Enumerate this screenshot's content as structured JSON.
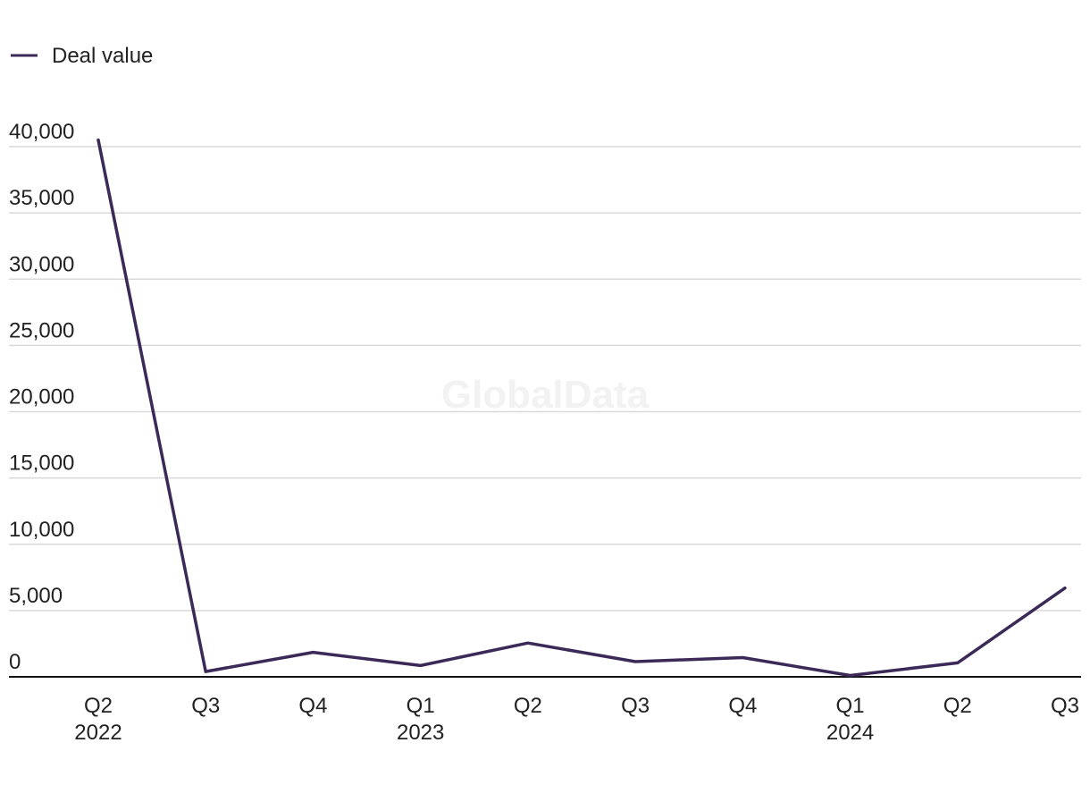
{
  "watermark": "GlobalData",
  "colors": {
    "line": "#3b2a58",
    "grid": "#d9d9d9",
    "axis": "#111111",
    "text": "#222222"
  },
  "chart_data": {
    "type": "line",
    "title": "",
    "xlabel": "",
    "ylabel": "",
    "categories": [
      "Q2 2022",
      "Q3 2022",
      "Q4 2022",
      "Q1 2023",
      "Q2 2023",
      "Q3 2023",
      "Q4 2023",
      "Q1 2024",
      "Q2 2024",
      "Q3 2024"
    ],
    "x_tick_labels": [
      {
        "quarter": "Q2",
        "year": "2022"
      },
      {
        "quarter": "Q3",
        "year": ""
      },
      {
        "quarter": "Q4",
        "year": ""
      },
      {
        "quarter": "Q1",
        "year": "2023"
      },
      {
        "quarter": "Q2",
        "year": ""
      },
      {
        "quarter": "Q3",
        "year": ""
      },
      {
        "quarter": "Q4",
        "year": ""
      },
      {
        "quarter": "Q1",
        "year": "2024"
      },
      {
        "quarter": "Q2",
        "year": ""
      },
      {
        "quarter": "Q3",
        "year": ""
      }
    ],
    "series": [
      {
        "name": "Deal value",
        "values": [
          40500,
          400,
          1850,
          850,
          2550,
          1150,
          1450,
          100,
          1050,
          6700
        ]
      }
    ],
    "y_ticks": [
      0,
      5000,
      10000,
      15000,
      20000,
      25000,
      30000,
      35000,
      40000
    ],
    "y_tick_labels": [
      "0",
      "5,000",
      "10,000",
      "15,000",
      "20,000",
      "25,000",
      "30,000",
      "35,000",
      "40,000"
    ],
    "ylim": [
      0,
      40000
    ],
    "grid": true,
    "legend_position": "top-left"
  }
}
